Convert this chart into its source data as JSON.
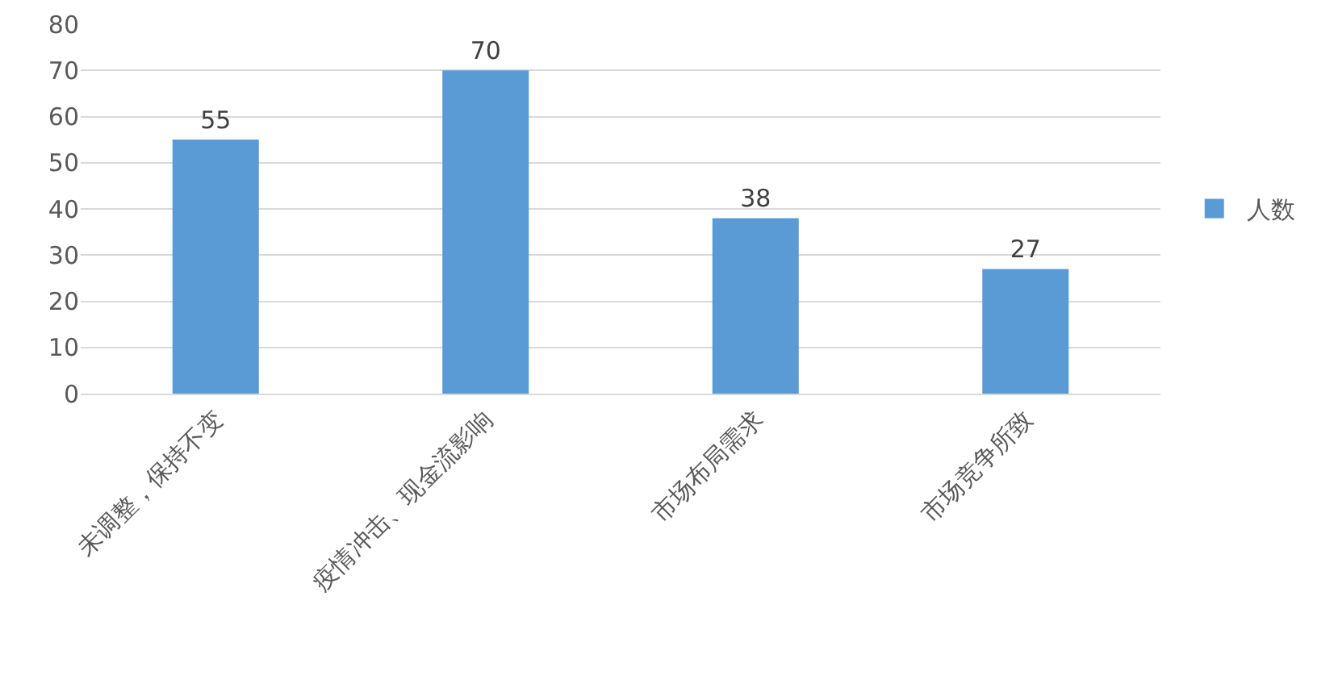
{
  "chart_data": {
    "type": "bar",
    "categories": [
      "未调整，保持不变",
      "疫情冲击、现金流影响",
      "市场布局需求",
      "市场竞争所致"
    ],
    "series": [
      {
        "name": "人数",
        "color": "#5b9bd5",
        "values": [
          55,
          70,
          38,
          27
        ]
      }
    ],
    "ylim": [
      0,
      80
    ],
    "yticks": [
      0,
      10,
      20,
      30,
      40,
      50,
      60,
      70,
      80
    ],
    "grid": "y",
    "legend": "right",
    "data_labels": true
  }
}
